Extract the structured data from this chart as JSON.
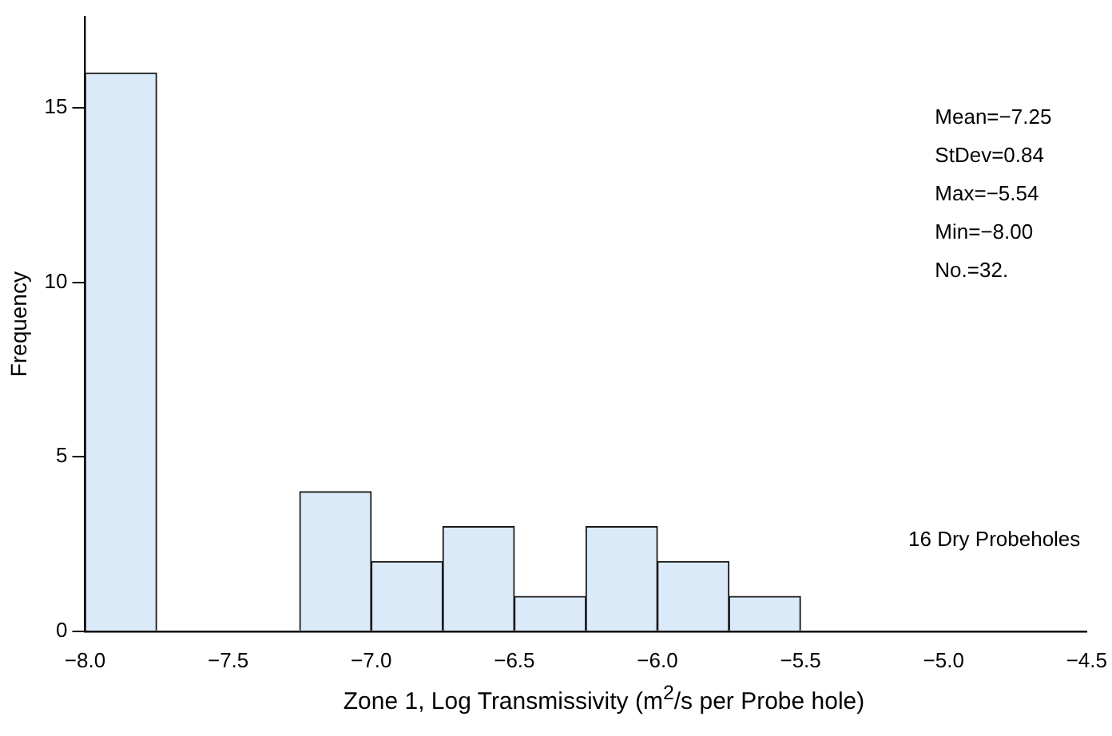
{
  "chart_data": {
    "type": "histogram",
    "xlabel": "Zone 1, Log Transmissivity (m$^{2}$/s per Probe hole)",
    "ylabel": "Frequency",
    "bins": [
      -8,
      -7.75,
      -7.5,
      -7.25,
      -7,
      -6.75,
      -6.5,
      -6.25,
      -6,
      -5.75,
      -5.5
    ],
    "values": [
      16,
      0,
      0,
      4,
      2,
      3,
      1,
      3,
      2,
      1
    ],
    "color": "#dbeaf8",
    "xlim": [
      -8,
      -4.5
    ],
    "xticks": [
      {
        "value": -8,
        "label": "−8.0"
      },
      {
        "value": -7.5,
        "label": "−7.5"
      },
      {
        "value": -7,
        "label": "−7.0"
      },
      {
        "value": -6.5,
        "label": "−6.5"
      },
      {
        "value": -6,
        "label": "−6.0"
      },
      {
        "value": -5.5,
        "label": "−5.5"
      },
      {
        "value": -5,
        "label": "−5.0"
      },
      {
        "value": -4.5,
        "label": "−4.5"
      }
    ],
    "ylim": [
      0,
      17.6
    ],
    "yticks": [
      0,
      5,
      10,
      15
    ],
    "annotations": [
      "Mean=−7.25",
      "StDev=0.84",
      "Max=−5.54",
      "Min=−8.00",
      "No.=32.",
      "16 Dry Probeholes"
    ]
  }
}
